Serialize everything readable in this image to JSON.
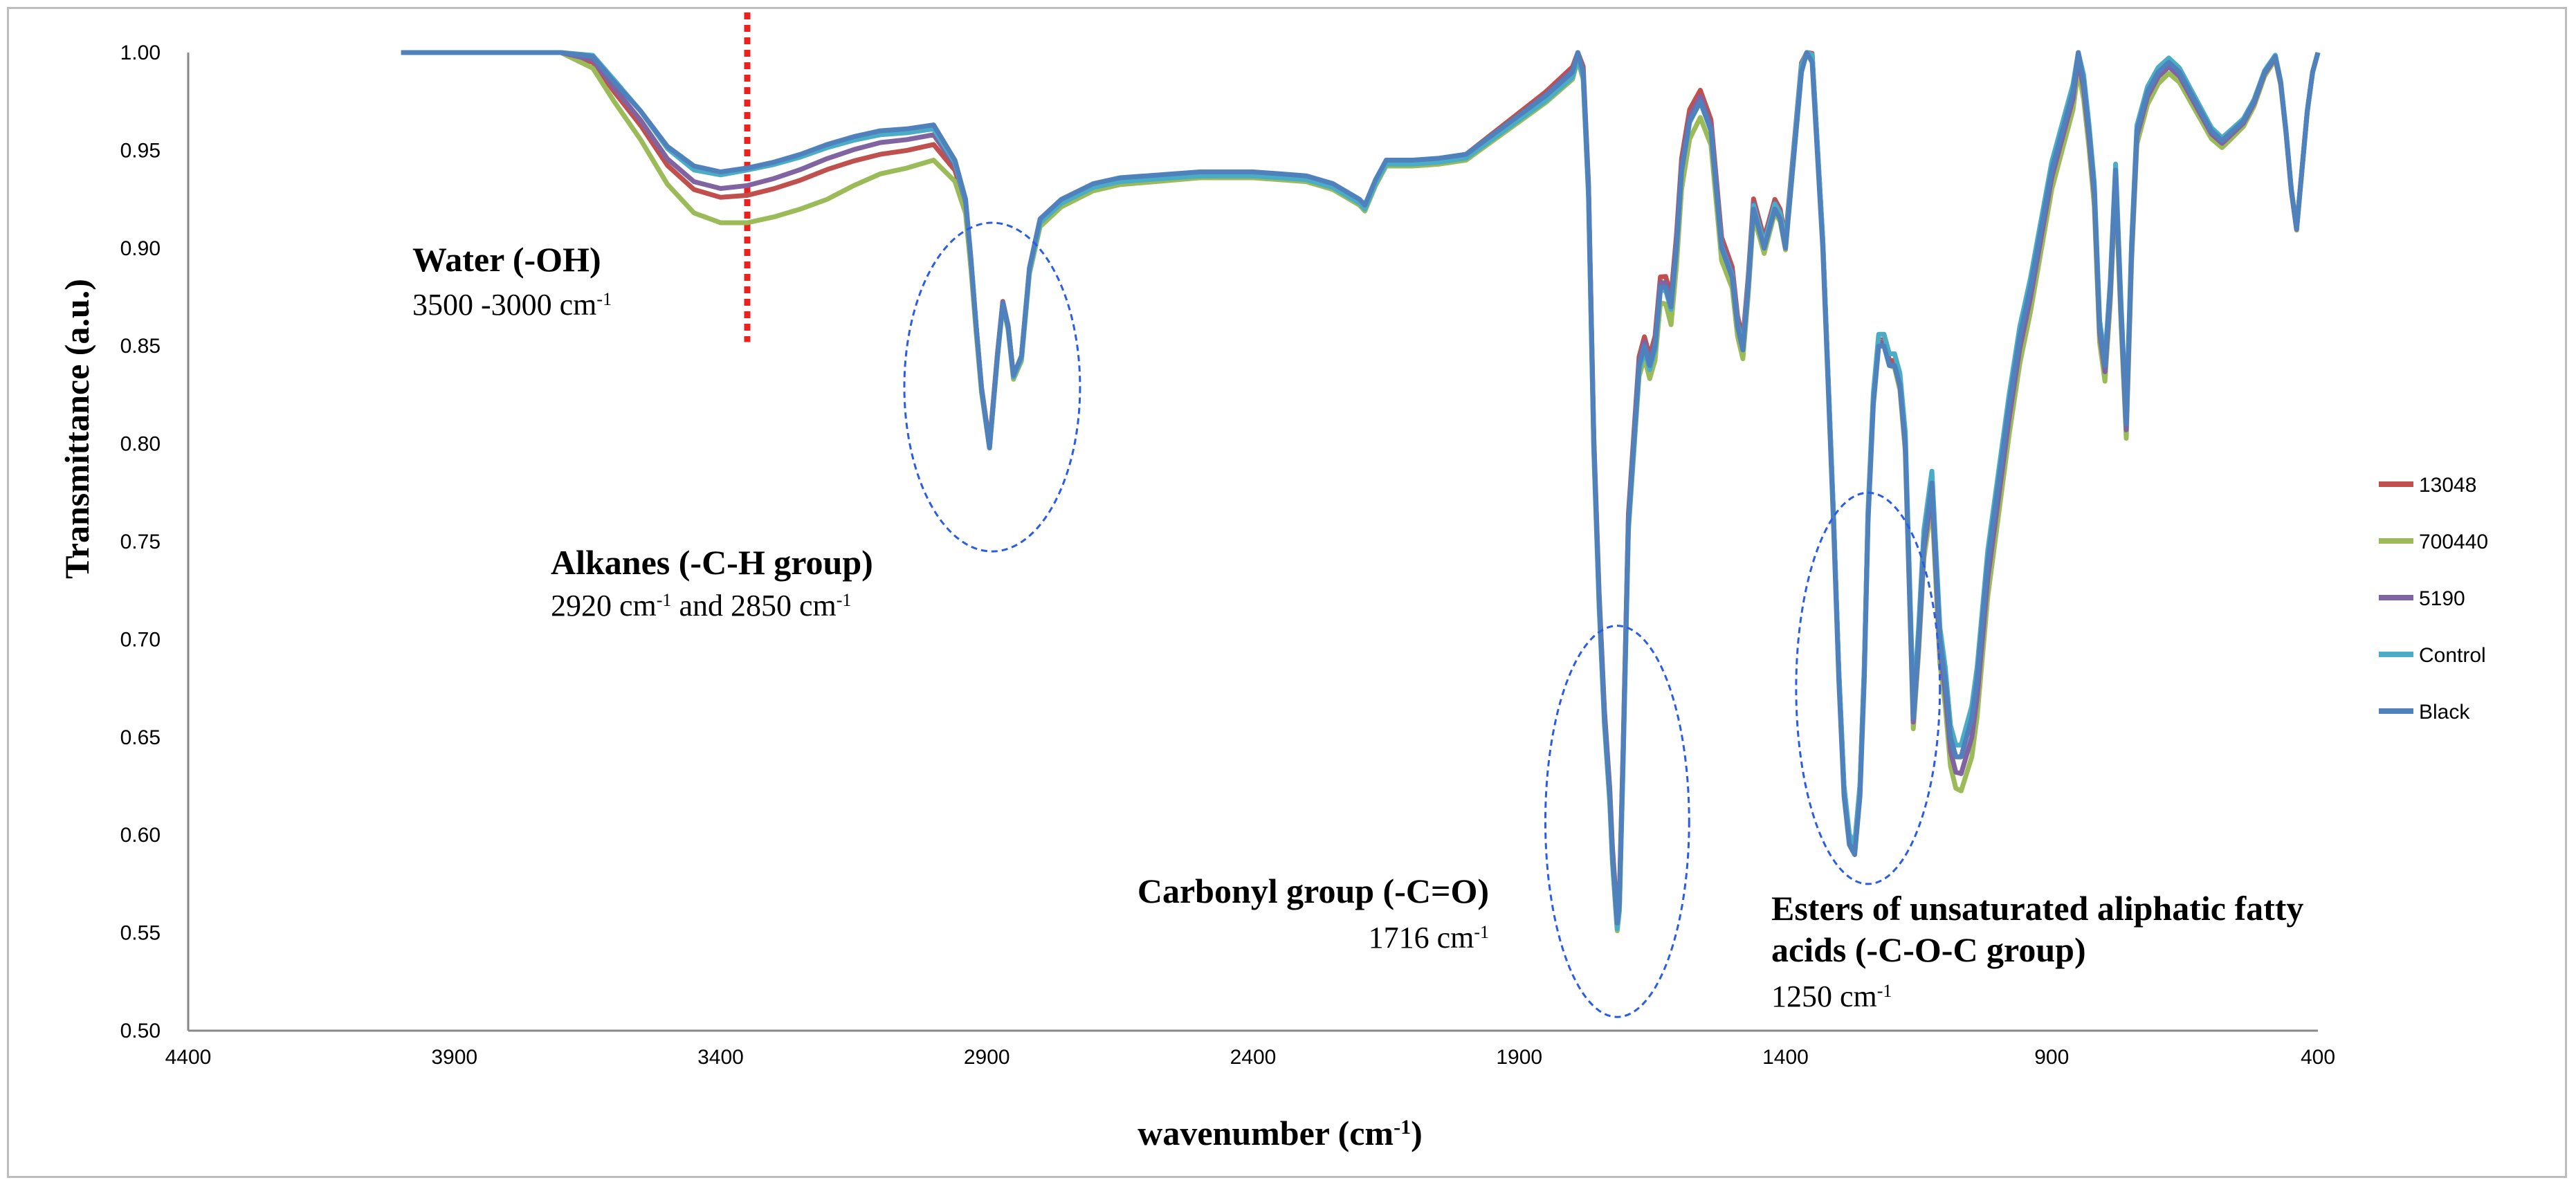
{
  "chart_data": {
    "type": "line",
    "title": "",
    "xlabel": "wavenumber (cm",
    "xlabel_superscript": "-1",
    "xlabel_suffix": ")",
    "ylabel": "Transmittance (a.u.)",
    "xlim": [
      4400,
      400
    ],
    "ylim": [
      0.5,
      1.0
    ],
    "x_ticks": [
      4400,
      3900,
      3400,
      2900,
      2400,
      1900,
      1400,
      900,
      400
    ],
    "y_ticks": [
      "0.50",
      "0.55",
      "0.60",
      "0.65",
      "0.70",
      "0.75",
      "0.80",
      "0.85",
      "0.90",
      "0.95",
      "1.00"
    ],
    "legend_position": "right",
    "legend": [
      "13048",
      "700440",
      "5190",
      "Control",
      "Black"
    ],
    "colors": {
      "13048": "#c0504d",
      "700440": "#9bbb59",
      "5190": "#8064a2",
      "Control": "#4bacc6",
      "Black": "#4f81bd"
    },
    "base_series": {
      "x": [
        4000,
        3700,
        3640,
        3600,
        3550,
        3500,
        3450,
        3400,
        3350,
        3300,
        3250,
        3200,
        3150,
        3100,
        3050,
        3000,
        2960,
        2940,
        2930,
        2920,
        2910,
        2895,
        2880,
        2870,
        2860,
        2850,
        2835,
        2820,
        2800,
        2760,
        2700,
        2650,
        2600,
        2500,
        2400,
        2350,
        2300,
        2250,
        2200,
        2190,
        2170,
        2150,
        2100,
        2050,
        2000,
        1950,
        1900,
        1850,
        1800,
        1790,
        1780,
        1770,
        1760,
        1750,
        1740,
        1730,
        1725,
        1720,
        1716,
        1712,
        1705,
        1695,
        1685,
        1675,
        1665,
        1655,
        1645,
        1635,
        1625,
        1615,
        1605,
        1595,
        1580,
        1560,
        1540,
        1520,
        1500,
        1490,
        1480,
        1470,
        1460,
        1450,
        1440,
        1430,
        1420,
        1410,
        1400,
        1390,
        1380,
        1370,
        1360,
        1350,
        1330,
        1310,
        1300,
        1290,
        1280,
        1270,
        1260,
        1252,
        1245,
        1235,
        1225,
        1215,
        1205,
        1195,
        1185,
        1175,
        1160,
        1150,
        1140,
        1125,
        1110,
        1100,
        1090,
        1080,
        1070,
        1060,
        1050,
        1040,
        1030,
        1020,
        1000,
        980,
        960,
        940,
        920,
        900,
        880,
        860,
        850,
        840,
        830,
        820,
        810,
        800,
        790,
        780,
        770,
        760,
        750,
        740,
        730,
        720,
        700,
        680,
        660,
        640,
        620,
        600,
        580,
        560,
        540,
        520,
        500,
        480,
        470,
        460,
        450,
        440,
        430,
        420,
        410,
        400
      ],
      "y": [
        1.0,
        1.0,
        0.998,
        0.985,
        0.97,
        0.952,
        0.942,
        0.939,
        0.941,
        0.944,
        0.948,
        0.953,
        0.957,
        0.96,
        0.961,
        0.963,
        0.945,
        0.925,
        0.895,
        0.86,
        0.828,
        0.798,
        0.845,
        0.872,
        0.86,
        0.835,
        0.845,
        0.89,
        0.915,
        0.925,
        0.933,
        0.936,
        0.937,
        0.939,
        0.939,
        0.938,
        0.937,
        0.933,
        0.925,
        0.922,
        0.935,
        0.945,
        0.945,
        0.946,
        0.948,
        0.958,
        0.968,
        0.978,
        0.99,
        1.0,
        0.99,
        0.93,
        0.8,
        0.72,
        0.66,
        0.62,
        0.59,
        0.57,
        0.555,
        0.565,
        0.64,
        0.76,
        0.8,
        0.84,
        0.85,
        0.84,
        0.85,
        0.88,
        0.88,
        0.87,
        0.9,
        0.94,
        0.965,
        0.975,
        0.96,
        0.9,
        0.885,
        0.86,
        0.848,
        0.88,
        0.92,
        0.91,
        0.9,
        0.91,
        0.92,
        0.915,
        0.9,
        0.93,
        0.96,
        0.99,
        1.0,
        0.995,
        0.9,
        0.76,
        0.68,
        0.62,
        0.595,
        0.59,
        0.62,
        0.68,
        0.76,
        0.82,
        0.85,
        0.85,
        0.84,
        0.84,
        0.83,
        0.8,
        0.66,
        0.7,
        0.75,
        0.78,
        0.7,
        0.68,
        0.65,
        0.64,
        0.64,
        0.65,
        0.66,
        0.68,
        0.71,
        0.74,
        0.78,
        0.82,
        0.855,
        0.88,
        0.91,
        0.94,
        0.96,
        0.98,
        1.0,
        0.985,
        0.96,
        0.93,
        0.86,
        0.84,
        0.88,
        0.94,
        0.87,
        0.81,
        0.9,
        0.96,
        0.97,
        0.98,
        0.99,
        0.995,
        0.99,
        0.98,
        0.97,
        0.96,
        0.955,
        0.96,
        0.965,
        0.975,
        0.99,
        0.998,
        0.985,
        0.96,
        0.93,
        0.91,
        0.94,
        0.97,
        0.99,
        1.0
      ]
    },
    "series": [
      {
        "name": "13048",
        "offsets": [
          [
            4000,
            0
          ],
          [
            3700,
            0
          ],
          [
            3600,
            -0.005
          ],
          [
            3450,
            -0.012
          ],
          [
            3350,
            -0.014
          ],
          [
            3100,
            -0.012
          ],
          [
            3000,
            -0.01
          ],
          [
            2900,
            0.002
          ],
          [
            2800,
            -0.002
          ],
          [
            2500,
            -0.001
          ],
          [
            2000,
            0.0
          ],
          [
            1700,
            0.004
          ],
          [
            1600,
            0.006
          ],
          [
            1250,
            0.004
          ],
          [
            1100,
            0.0
          ],
          [
            900,
            0.0
          ],
          [
            400,
            0.0
          ]
        ]
      },
      {
        "name": "700440",
        "offsets": [
          [
            4000,
            0
          ],
          [
            3700,
            0
          ],
          [
            3600,
            -0.01
          ],
          [
            3450,
            -0.024
          ],
          [
            3350,
            -0.028
          ],
          [
            3200,
            -0.028
          ],
          [
            3100,
            -0.022
          ],
          [
            3000,
            -0.018
          ],
          [
            2900,
            0.0
          ],
          [
            2800,
            -0.004
          ],
          [
            2500,
            -0.003
          ],
          [
            2000,
            -0.003
          ],
          [
            1700,
            -0.004
          ],
          [
            1600,
            -0.01
          ],
          [
            1250,
            0.006
          ],
          [
            1050,
            -0.02
          ],
          [
            900,
            -0.01
          ],
          [
            400,
            0.0
          ]
        ]
      },
      {
        "name": "5190",
        "offsets": [
          [
            4000,
            0
          ],
          [
            3700,
            0
          ],
          [
            3600,
            -0.003
          ],
          [
            3450,
            -0.008
          ],
          [
            3350,
            -0.009
          ],
          [
            3100,
            -0.006
          ],
          [
            3000,
            -0.005
          ],
          [
            2900,
            0.001
          ],
          [
            2800,
            -0.001
          ],
          [
            2500,
            -0.002
          ],
          [
            2000,
            -0.001
          ],
          [
            1700,
            0.002
          ],
          [
            1250,
            0.004
          ],
          [
            1050,
            -0.01
          ],
          [
            900,
            -0.004
          ],
          [
            400,
            0.0
          ]
        ]
      },
      {
        "name": "Control",
        "offsets": [
          [
            4000,
            0
          ],
          [
            3700,
            0
          ],
          [
            3600,
            0.001
          ],
          [
            3450,
            -0.002
          ],
          [
            3350,
            -0.001
          ],
          [
            3100,
            -0.002
          ],
          [
            3000,
            -0.002
          ],
          [
            2900,
            0.0
          ],
          [
            2800,
            -0.002
          ],
          [
            2500,
            -0.002
          ],
          [
            2000,
            -0.002
          ],
          [
            1700,
            -0.003
          ],
          [
            1250,
            0.006
          ],
          [
            1050,
            0.006
          ],
          [
            900,
            0.004
          ],
          [
            400,
            0.0
          ]
        ]
      },
      {
        "name": "Black",
        "offsets": [
          [
            4000,
            0
          ],
          [
            400,
            0
          ]
        ]
      }
    ],
    "annotations": [
      {
        "title": "Water (-OH)",
        "subtitle": "3500 -3000 cm",
        "subtitle_sup": "-1",
        "subtitle_tail": ""
      },
      {
        "title": "Alkanes (-C-H group)",
        "subtitle": "2920 cm",
        "subtitle_sup": "-1",
        "subtitle_tail": " and 2850 cm",
        "subtitle_sup2": "-1"
      },
      {
        "title": "Carbonyl group (-C=O)",
        "subtitle": "1716 cm",
        "subtitle_sup": "-1",
        "subtitle_tail": ""
      },
      {
        "title": "Esters of unsaturated aliphatic fatty",
        "title_line2": "acids (-C-O-C group)",
        "subtitle": "1250 cm",
        "subtitle_sup": "-1",
        "subtitle_tail": ""
      }
    ],
    "marker_line_x": 3350,
    "highlight_ellipses": [
      {
        "label": "alkanes-region",
        "x_center": 2890,
        "y_center": 0.829,
        "x_radius": 165,
        "y_radius": 0.084
      },
      {
        "label": "carbonyl-region",
        "x_center": 1716,
        "y_center": 0.607,
        "x_radius": 135,
        "y_radius": 0.1
      },
      {
        "label": "ester-region",
        "x_center": 1245,
        "y_center": 0.675,
        "x_radius": 135,
        "y_radius": 0.1
      }
    ]
  }
}
